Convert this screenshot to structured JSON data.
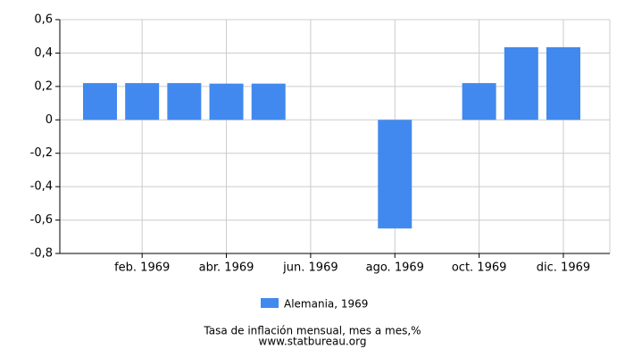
{
  "chart_data": {
    "type": "bar",
    "categories": [
      null,
      "feb. 1969",
      null,
      "abr. 1969",
      null,
      "jun. 1969",
      null,
      "ago. 1969",
      null,
      "oct. 1969",
      null,
      "dic. 1969"
    ],
    "series": [
      {
        "name": "Alemania, 1969",
        "color": "#4189ee",
        "values": [
          0.22,
          0.22,
          0.22,
          0.217,
          0.217,
          0,
          0,
          -0.65,
          0,
          0.22,
          0.435,
          0.435
        ]
      }
    ],
    "ylim": [
      -0.8,
      0.6
    ],
    "yticks": [
      {
        "value": -0.8,
        "label": "-0,8"
      },
      {
        "value": -0.6,
        "label": "-0,6"
      },
      {
        "value": -0.4,
        "label": "-0,4"
      },
      {
        "value": -0.2,
        "label": "-0,2"
      },
      0,
      {
        "value": 0.2,
        "label": "0,2"
      },
      {
        "value": 0.4,
        "label": "0,4"
      },
      {
        "value": 0.6,
        "label": "0,6"
      }
    ],
    "grid": true,
    "caption": "Tasa de inflación mensual, mes a mes,%",
    "source": "www.statbureau.org"
  }
}
